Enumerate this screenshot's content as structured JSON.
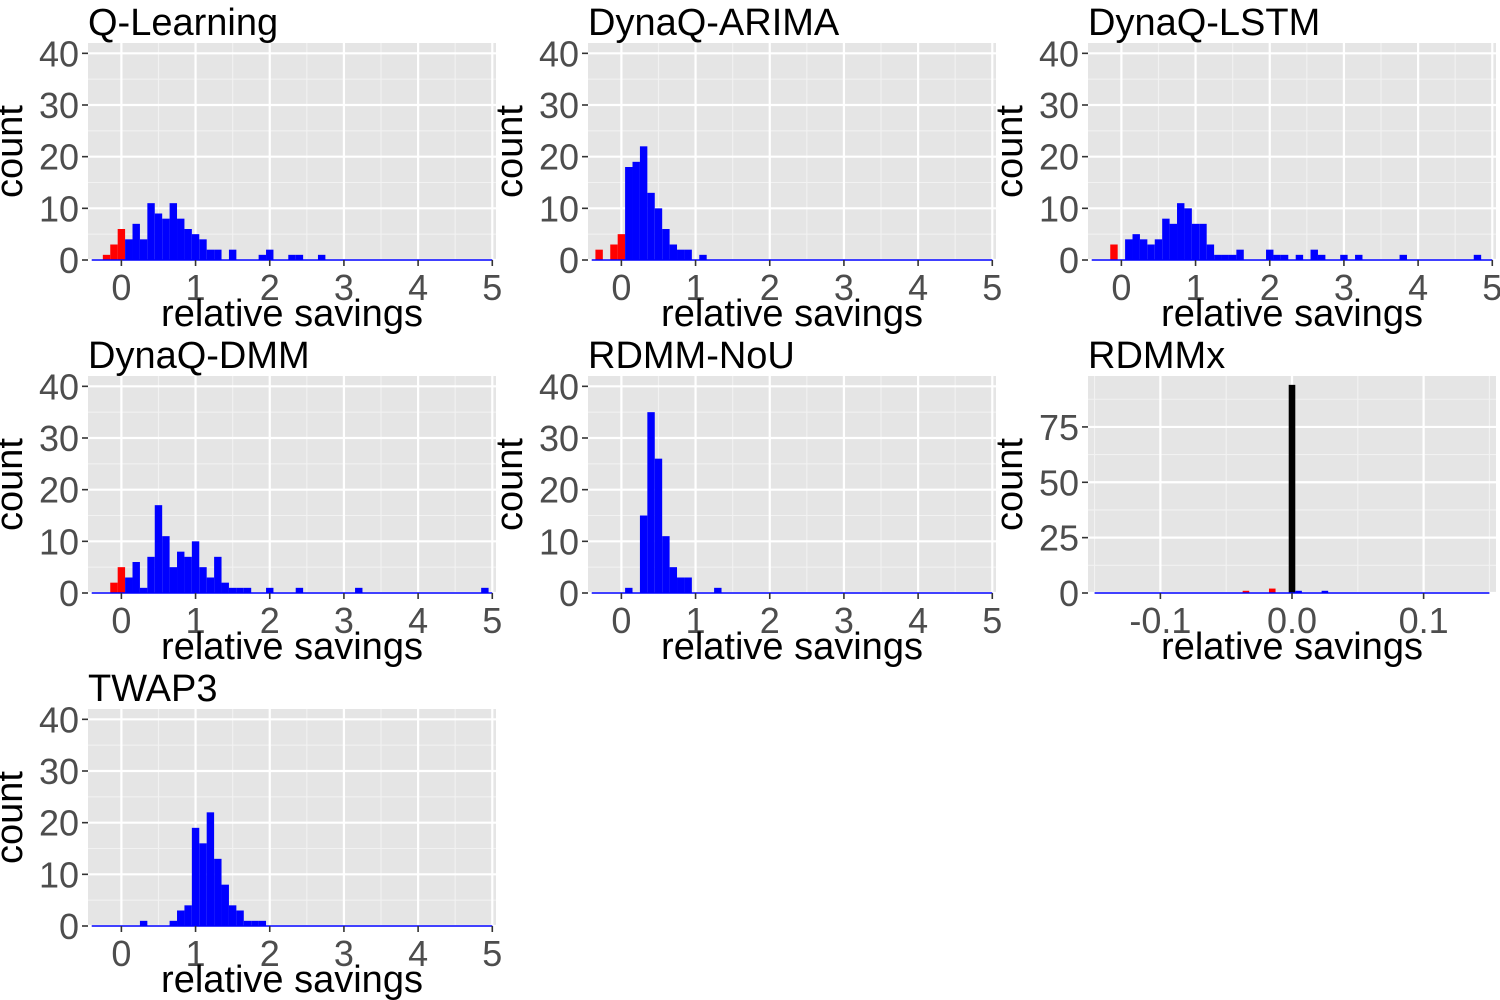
{
  "colors": {
    "panel_bg": "#e5e5e5",
    "grid_major": "#ffffff",
    "grid_minor": "#f2f2f2",
    "negative": "#ff0000",
    "positive": "#0000ff",
    "zero": "#000000",
    "tick_text": "#4d4d4d"
  },
  "chart_data": [
    {
      "type": "bar",
      "title": "Q-Learning",
      "xlabel": "relative savings",
      "ylabel": "count",
      "xlim": [
        -0.45,
        5.05
      ],
      "ylim": [
        0,
        42
      ],
      "xticks": [
        0,
        1,
        2,
        3,
        4,
        5
      ],
      "xtick_labels": [
        "0",
        "1",
        "2",
        "3",
        "4",
        "5"
      ],
      "yticks": [
        0,
        10,
        20,
        30,
        40
      ],
      "ytick_labels": [
        "0",
        "10",
        "20",
        "30",
        "40"
      ],
      "baseline_range": [
        -0.4,
        5.0
      ],
      "bin_width": 0.1,
      "bins": [
        {
          "x": -0.2,
          "count": 1,
          "sign": "neg"
        },
        {
          "x": -0.1,
          "count": 3,
          "sign": "neg"
        },
        {
          "x": 0.0,
          "count": 6,
          "sign": "neg"
        },
        {
          "x": 0.1,
          "count": 4,
          "sign": "pos"
        },
        {
          "x": 0.2,
          "count": 7,
          "sign": "pos"
        },
        {
          "x": 0.3,
          "count": 4,
          "sign": "pos"
        },
        {
          "x": 0.4,
          "count": 11,
          "sign": "pos"
        },
        {
          "x": 0.5,
          "count": 9,
          "sign": "pos"
        },
        {
          "x": 0.6,
          "count": 8,
          "sign": "pos"
        },
        {
          "x": 0.7,
          "count": 11,
          "sign": "pos"
        },
        {
          "x": 0.8,
          "count": 8,
          "sign": "pos"
        },
        {
          "x": 0.9,
          "count": 6,
          "sign": "pos"
        },
        {
          "x": 1.0,
          "count": 5,
          "sign": "pos"
        },
        {
          "x": 1.1,
          "count": 4,
          "sign": "pos"
        },
        {
          "x": 1.2,
          "count": 2,
          "sign": "pos"
        },
        {
          "x": 1.3,
          "count": 2,
          "sign": "pos"
        },
        {
          "x": 1.5,
          "count": 2,
          "sign": "pos"
        },
        {
          "x": 1.9,
          "count": 1,
          "sign": "pos"
        },
        {
          "x": 2.0,
          "count": 2,
          "sign": "pos"
        },
        {
          "x": 2.3,
          "count": 1,
          "sign": "pos"
        },
        {
          "x": 2.4,
          "count": 1,
          "sign": "pos"
        },
        {
          "x": 2.7,
          "count": 1,
          "sign": "pos"
        }
      ]
    },
    {
      "type": "bar",
      "title": "DynaQ-ARIMA",
      "xlabel": "relative savings",
      "ylabel": "count",
      "xlim": [
        -0.45,
        5.05
      ],
      "ylim": [
        0,
        42
      ],
      "xticks": [
        0,
        1,
        2,
        3,
        4,
        5
      ],
      "xtick_labels": [
        "0",
        "1",
        "2",
        "3",
        "4",
        "5"
      ],
      "yticks": [
        0,
        10,
        20,
        30,
        40
      ],
      "ytick_labels": [
        "0",
        "10",
        "20",
        "30",
        "40"
      ],
      "baseline_range": [
        -0.4,
        5.0
      ],
      "bin_width": 0.1,
      "bins": [
        {
          "x": -0.3,
          "count": 2,
          "sign": "neg"
        },
        {
          "x": -0.1,
          "count": 3,
          "sign": "neg"
        },
        {
          "x": 0.0,
          "count": 5,
          "sign": "neg"
        },
        {
          "x": 0.1,
          "count": 18,
          "sign": "pos"
        },
        {
          "x": 0.2,
          "count": 19,
          "sign": "pos"
        },
        {
          "x": 0.3,
          "count": 22,
          "sign": "pos"
        },
        {
          "x": 0.4,
          "count": 13,
          "sign": "pos"
        },
        {
          "x": 0.5,
          "count": 10,
          "sign": "pos"
        },
        {
          "x": 0.6,
          "count": 6,
          "sign": "pos"
        },
        {
          "x": 0.7,
          "count": 3,
          "sign": "pos"
        },
        {
          "x": 0.8,
          "count": 2,
          "sign": "pos"
        },
        {
          "x": 0.9,
          "count": 2,
          "sign": "pos"
        },
        {
          "x": 1.1,
          "count": 1,
          "sign": "pos"
        }
      ]
    },
    {
      "type": "bar",
      "title": "DynaQ-LSTM",
      "xlabel": "relative savings",
      "ylabel": "count",
      "xlim": [
        -0.45,
        5.05
      ],
      "ylim": [
        0,
        42
      ],
      "xticks": [
        0,
        1,
        2,
        3,
        4,
        5
      ],
      "xtick_labels": [
        "0",
        "1",
        "2",
        "3",
        "4",
        "5"
      ],
      "yticks": [
        0,
        10,
        20,
        30,
        40
      ],
      "ytick_labels": [
        "0",
        "10",
        "20",
        "30",
        "40"
      ],
      "baseline_range": [
        -0.4,
        5.0
      ],
      "bin_width": 0.1,
      "bins": [
        {
          "x": -0.1,
          "count": 3,
          "sign": "neg"
        },
        {
          "x": 0.1,
          "count": 4,
          "sign": "pos"
        },
        {
          "x": 0.2,
          "count": 5,
          "sign": "pos"
        },
        {
          "x": 0.3,
          "count": 4,
          "sign": "pos"
        },
        {
          "x": 0.4,
          "count": 3,
          "sign": "pos"
        },
        {
          "x": 0.5,
          "count": 4,
          "sign": "pos"
        },
        {
          "x": 0.6,
          "count": 8,
          "sign": "pos"
        },
        {
          "x": 0.7,
          "count": 7,
          "sign": "pos"
        },
        {
          "x": 0.8,
          "count": 11,
          "sign": "pos"
        },
        {
          "x": 0.9,
          "count": 10,
          "sign": "pos"
        },
        {
          "x": 1.0,
          "count": 7,
          "sign": "pos"
        },
        {
          "x": 1.1,
          "count": 7,
          "sign": "pos"
        },
        {
          "x": 1.2,
          "count": 3,
          "sign": "pos"
        },
        {
          "x": 1.3,
          "count": 1,
          "sign": "pos"
        },
        {
          "x": 1.4,
          "count": 1,
          "sign": "pos"
        },
        {
          "x": 1.5,
          "count": 1,
          "sign": "pos"
        },
        {
          "x": 1.6,
          "count": 2,
          "sign": "pos"
        },
        {
          "x": 2.0,
          "count": 2,
          "sign": "pos"
        },
        {
          "x": 2.1,
          "count": 1,
          "sign": "pos"
        },
        {
          "x": 2.2,
          "count": 1,
          "sign": "pos"
        },
        {
          "x": 2.4,
          "count": 1,
          "sign": "pos"
        },
        {
          "x": 2.6,
          "count": 2,
          "sign": "pos"
        },
        {
          "x": 2.7,
          "count": 1,
          "sign": "pos"
        },
        {
          "x": 3.0,
          "count": 1,
          "sign": "pos"
        },
        {
          "x": 3.2,
          "count": 1,
          "sign": "pos"
        },
        {
          "x": 3.8,
          "count": 1,
          "sign": "pos"
        },
        {
          "x": 4.8,
          "count": 1,
          "sign": "pos"
        }
      ]
    },
    {
      "type": "bar",
      "title": "DynaQ-DMM",
      "xlabel": "relative savings",
      "ylabel": "count",
      "xlim": [
        -0.45,
        5.05
      ],
      "ylim": [
        0,
        42
      ],
      "xticks": [
        0,
        1,
        2,
        3,
        4,
        5
      ],
      "xtick_labels": [
        "0",
        "1",
        "2",
        "3",
        "4",
        "5"
      ],
      "yticks": [
        0,
        10,
        20,
        30,
        40
      ],
      "ytick_labels": [
        "0",
        "10",
        "20",
        "30",
        "40"
      ],
      "baseline_range": [
        -0.4,
        5.0
      ],
      "bin_width": 0.1,
      "bins": [
        {
          "x": -0.1,
          "count": 2,
          "sign": "neg"
        },
        {
          "x": 0.0,
          "count": 5,
          "sign": "neg"
        },
        {
          "x": 0.1,
          "count": 3,
          "sign": "pos"
        },
        {
          "x": 0.2,
          "count": 6,
          "sign": "pos"
        },
        {
          "x": 0.3,
          "count": 1,
          "sign": "pos"
        },
        {
          "x": 0.4,
          "count": 7,
          "sign": "pos"
        },
        {
          "x": 0.5,
          "count": 17,
          "sign": "pos"
        },
        {
          "x": 0.6,
          "count": 11,
          "sign": "pos"
        },
        {
          "x": 0.7,
          "count": 5,
          "sign": "pos"
        },
        {
          "x": 0.8,
          "count": 8,
          "sign": "pos"
        },
        {
          "x": 0.9,
          "count": 7,
          "sign": "pos"
        },
        {
          "x": 1.0,
          "count": 10,
          "sign": "pos"
        },
        {
          "x": 1.1,
          "count": 5,
          "sign": "pos"
        },
        {
          "x": 1.2,
          "count": 3,
          "sign": "pos"
        },
        {
          "x": 1.3,
          "count": 7,
          "sign": "pos"
        },
        {
          "x": 1.4,
          "count": 2,
          "sign": "pos"
        },
        {
          "x": 1.5,
          "count": 1,
          "sign": "pos"
        },
        {
          "x": 1.6,
          "count": 1,
          "sign": "pos"
        },
        {
          "x": 1.7,
          "count": 1,
          "sign": "pos"
        },
        {
          "x": 2.0,
          "count": 1,
          "sign": "pos"
        },
        {
          "x": 2.4,
          "count": 1,
          "sign": "pos"
        },
        {
          "x": 3.2,
          "count": 1,
          "sign": "pos"
        },
        {
          "x": 4.9,
          "count": 1,
          "sign": "pos"
        }
      ]
    },
    {
      "type": "bar",
      "title": "RDMM-NoU",
      "xlabel": "relative savings",
      "ylabel": "count",
      "xlim": [
        -0.45,
        5.05
      ],
      "ylim": [
        0,
        42
      ],
      "xticks": [
        0,
        1,
        2,
        3,
        4,
        5
      ],
      "xtick_labels": [
        "0",
        "1",
        "2",
        "3",
        "4",
        "5"
      ],
      "yticks": [
        0,
        10,
        20,
        30,
        40
      ],
      "ytick_labels": [
        "0",
        "10",
        "20",
        "30",
        "40"
      ],
      "baseline_range": [
        -0.4,
        5.0
      ],
      "bin_width": 0.1,
      "bins": [
        {
          "x": 0.1,
          "count": 1,
          "sign": "pos"
        },
        {
          "x": 0.3,
          "count": 15,
          "sign": "pos"
        },
        {
          "x": 0.4,
          "count": 35,
          "sign": "pos"
        },
        {
          "x": 0.5,
          "count": 26,
          "sign": "pos"
        },
        {
          "x": 0.6,
          "count": 11,
          "sign": "pos"
        },
        {
          "x": 0.7,
          "count": 5,
          "sign": "pos"
        },
        {
          "x": 0.8,
          "count": 3,
          "sign": "pos"
        },
        {
          "x": 0.9,
          "count": 3,
          "sign": "pos"
        },
        {
          "x": 1.3,
          "count": 1,
          "sign": "pos"
        }
      ]
    },
    {
      "type": "bar",
      "title": "RDMMx",
      "xlabel": "relative savings",
      "ylabel": "count",
      "xlim": [
        -0.155,
        0.155
      ],
      "ylim": [
        0,
        98
      ],
      "xticks": [
        -0.1,
        0.0,
        0.1
      ],
      "xtick_labels": [
        "-0.1",
        "0.0",
        "0.1"
      ],
      "yticks": [
        0,
        25,
        50,
        75
      ],
      "ytick_labels": [
        "0",
        "25",
        "50",
        "75"
      ],
      "baseline_range": [
        -0.15,
        0.15
      ],
      "bin_width": 0.005,
      "bins": [
        {
          "x": -0.035,
          "count": 1,
          "sign": "neg"
        },
        {
          "x": -0.015,
          "count": 2,
          "sign": "neg"
        },
        {
          "x": 0.0,
          "count": 94,
          "sign": "zero"
        },
        {
          "x": 0.005,
          "count": 1,
          "sign": "pos"
        },
        {
          "x": 0.025,
          "count": 1,
          "sign": "pos"
        }
      ]
    },
    {
      "type": "bar",
      "title": "TWAP3",
      "xlabel": "relative savings",
      "ylabel": "count",
      "xlim": [
        -0.45,
        5.05
      ],
      "ylim": [
        0,
        42
      ],
      "xticks": [
        0,
        1,
        2,
        3,
        4,
        5
      ],
      "xtick_labels": [
        "0",
        "1",
        "2",
        "3",
        "4",
        "5"
      ],
      "yticks": [
        0,
        10,
        20,
        30,
        40
      ],
      "ytick_labels": [
        "0",
        "10",
        "20",
        "30",
        "40"
      ],
      "baseline_range": [
        -0.4,
        5.0
      ],
      "bin_width": 0.1,
      "bins": [
        {
          "x": 0.3,
          "count": 1,
          "sign": "pos"
        },
        {
          "x": 0.7,
          "count": 1,
          "sign": "pos"
        },
        {
          "x": 0.8,
          "count": 3,
          "sign": "pos"
        },
        {
          "x": 0.9,
          "count": 4,
          "sign": "pos"
        },
        {
          "x": 1.0,
          "count": 19,
          "sign": "pos"
        },
        {
          "x": 1.1,
          "count": 16,
          "sign": "pos"
        },
        {
          "x": 1.2,
          "count": 22,
          "sign": "pos"
        },
        {
          "x": 1.3,
          "count": 13,
          "sign": "pos"
        },
        {
          "x": 1.4,
          "count": 8,
          "sign": "pos"
        },
        {
          "x": 1.5,
          "count": 4,
          "sign": "pos"
        },
        {
          "x": 1.6,
          "count": 3,
          "sign": "pos"
        },
        {
          "x": 1.7,
          "count": 1,
          "sign": "pos"
        },
        {
          "x": 1.8,
          "count": 1,
          "sign": "pos"
        },
        {
          "x": 1.9,
          "count": 1,
          "sign": "pos"
        }
      ]
    }
  ]
}
